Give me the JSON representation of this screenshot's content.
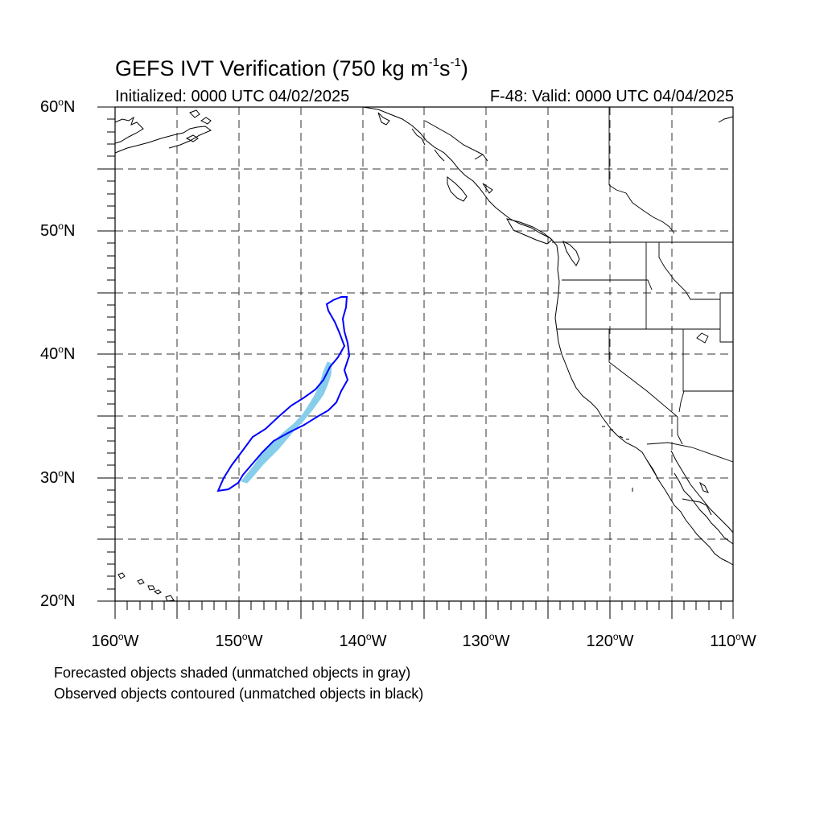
{
  "title": {
    "main": "GEFS IVT Verification (750 kg m",
    "exp1": "-1",
    "mid": "s",
    "exp2": "-1",
    "end": ")"
  },
  "subtitle": {
    "left": "Initialized: 0000 UTC 04/02/2025",
    "right": "F-48: Valid: 0000 UTC 04/04/2025"
  },
  "axes": {
    "degree_symbol": "o",
    "lat": [
      {
        "num": "60",
        "hemi": "N"
      },
      {
        "num": "50",
        "hemi": "N"
      },
      {
        "num": "40",
        "hemi": "N"
      },
      {
        "num": "30",
        "hemi": "N"
      },
      {
        "num": "20",
        "hemi": "N"
      }
    ],
    "lon": [
      {
        "num": "160",
        "hemi": "W"
      },
      {
        "num": "150",
        "hemi": "W"
      },
      {
        "num": "140",
        "hemi": "W"
      },
      {
        "num": "130",
        "hemi": "W"
      },
      {
        "num": "120",
        "hemi": "W"
      },
      {
        "num": "110",
        "hemi": "W"
      }
    ]
  },
  "map_extent": {
    "lon_min": -160,
    "lon_max": -110,
    "lat_min": 20,
    "lat_max": 60
  },
  "colors": {
    "forecast_fill": "#87ceeb",
    "observed_contour": "#0000ff",
    "coastline": "#000000",
    "grid": "#333333"
  },
  "captions": {
    "line1": "Forecasted objects shaded (unmatched objects in gray)",
    "line2": "Observed objects contoured (unmatched objects in black)"
  }
}
